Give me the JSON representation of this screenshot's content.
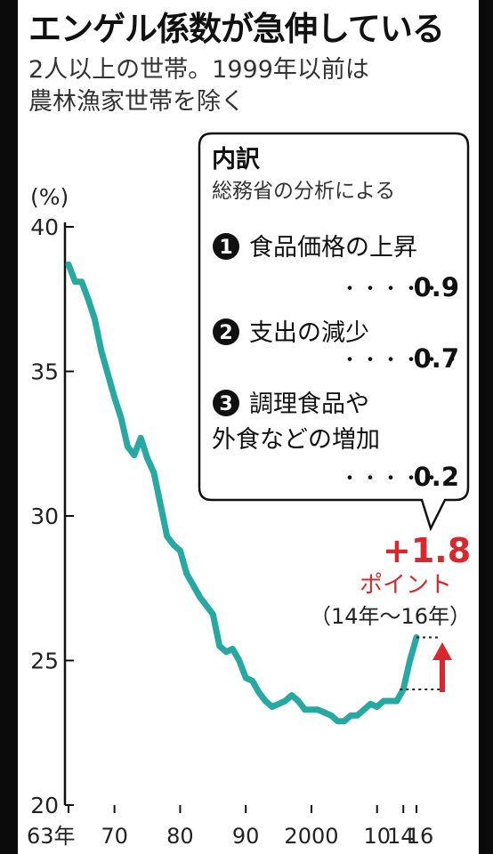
{
  "chart_data": {
    "type": "line",
    "title": "エンゲル係数が急伸している",
    "subtitle_lines": [
      "2人以上の世帯。1999年以前は",
      "農林漁家世帯を除く"
    ],
    "ylabel": "(%)",
    "xlabel": "",
    "ylim": [
      20,
      40
    ],
    "y_ticks": [
      "40",
      "35",
      "30",
      "25",
      "20"
    ],
    "x_ticks": [
      {
        "year": 1963,
        "label": "63年"
      },
      {
        "year": 1970,
        "label": "70"
      },
      {
        "year": 1980,
        "label": "80"
      },
      {
        "year": 1990,
        "label": "90"
      },
      {
        "year": 2000,
        "label": "2000"
      },
      {
        "year": 2010,
        "label": "10"
      },
      {
        "year": 2014,
        "label": "14"
      },
      {
        "year": 2016,
        "label": "16"
      }
    ],
    "line_color": "#27a8a0",
    "series": [
      {
        "x": [
          1963,
          1964,
          1965,
          1966,
          1967,
          1968,
          1969,
          1970,
          1971,
          1972,
          1973,
          1974,
          1975,
          1976,
          1977,
          1978,
          1979,
          1980,
          1981,
          1982,
          1983,
          1984,
          1985,
          1986,
          1987,
          1988,
          1989,
          1990,
          1991,
          1992,
          1993,
          1994,
          1995,
          1996,
          1997,
          1998,
          1999,
          2000,
          2001,
          2002,
          2003,
          2004,
          2005,
          2006,
          2007,
          2008,
          2009,
          2010,
          2011,
          2012,
          2013,
          2014,
          2015,
          2016
        ],
        "values": [
          38.7,
          38.1,
          38.1,
          37.5,
          36.8,
          35.7,
          34.9,
          34.1,
          33.4,
          32.4,
          32.1,
          32.7,
          32.0,
          31.5,
          30.4,
          29.3,
          29.0,
          28.8,
          28.0,
          27.6,
          27.2,
          26.9,
          26.6,
          25.5,
          25.3,
          25.4,
          25.0,
          24.4,
          24.3,
          23.9,
          23.6,
          23.4,
          23.5,
          23.6,
          23.8,
          23.6,
          23.3,
          23.3,
          23.3,
          23.2,
          23.1,
          22.9,
          22.9,
          23.1,
          23.1,
          23.3,
          23.5,
          23.4,
          23.6,
          23.6,
          23.6,
          24.0,
          25.0,
          25.8
        ]
      }
    ]
  },
  "annotation": {
    "increase": "+1.8",
    "unit": "ポイント",
    "period": "（14年〜16年）"
  },
  "breakdown": {
    "title": "内訳",
    "source": "総務省の分析による",
    "leader": "・・・・・・",
    "items": [
      {
        "num": "1",
        "label": "食品価格の上昇",
        "value": "0.9"
      },
      {
        "num": "2",
        "label": "支出の減少",
        "value": "0.7"
      },
      {
        "num": "3",
        "label": "調理食品や",
        "label2": "外食などの増加",
        "value": "0.2"
      }
    ]
  }
}
